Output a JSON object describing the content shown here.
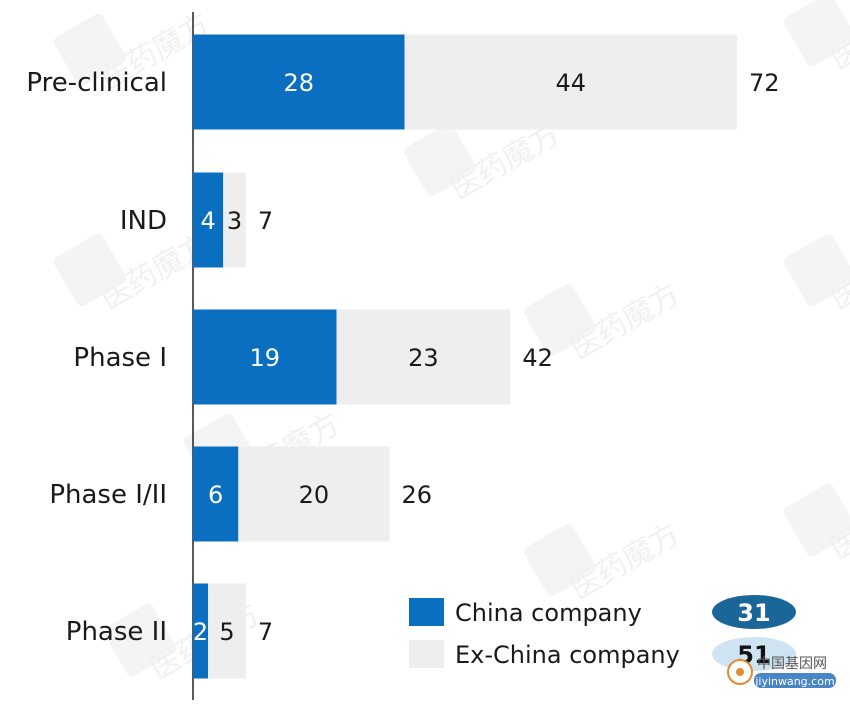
{
  "chart_data": {
    "type": "bar",
    "orientation": "horizontal",
    "stacked": true,
    "categories": [
      "Pre-clinical",
      "IND",
      "Phase I",
      "Phase I/II",
      "Phase II"
    ],
    "series": [
      {
        "name": "China company",
        "color": "#0b6fc1",
        "values": [
          28,
          4,
          19,
          6,
          2
        ]
      },
      {
        "name": "Ex-China company",
        "color": "#eeeeee",
        "values": [
          44,
          3,
          23,
          20,
          5
        ]
      }
    ],
    "totals": [
      72,
      7,
      42,
      26,
      7
    ],
    "xlim": [
      0,
      72
    ],
    "grid": false,
    "legend_position": "bottom-right"
  },
  "legend_badges": [
    {
      "value": "31",
      "color": "#1a6699"
    },
    {
      "value": "51",
      "color": "#cfe4f2"
    }
  ],
  "watermark": {
    "label": "医药魔方",
    "site_text": "中国基因网",
    "site_url": "jiyinwang.com"
  }
}
